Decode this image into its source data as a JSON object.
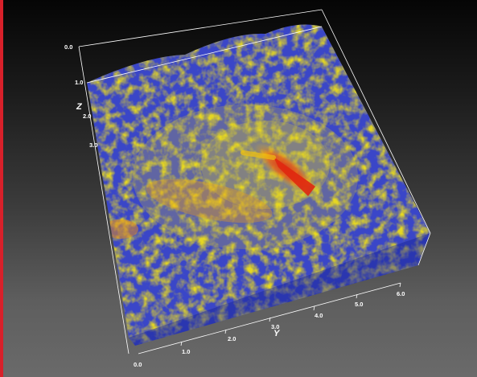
{
  "colors": {
    "accent_bar": "#d8202a",
    "volume_low": "#3a46c8",
    "volume_mid": "#e6d820",
    "volume_high": "#e03010",
    "axis": "#ffffff"
  },
  "axes": {
    "z": {
      "name": "Z",
      "ticks": [
        "0.0",
        "1.0",
        "2.0",
        "3.0"
      ]
    },
    "y": {
      "name": "Y",
      "ticks": [
        "0.0",
        "1.0",
        "2.0",
        "3.0",
        "4.0",
        "5.0",
        "6.0"
      ]
    }
  }
}
